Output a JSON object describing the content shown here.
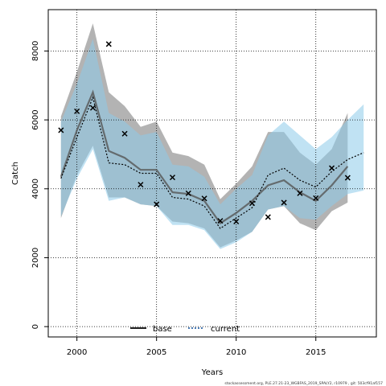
{
  "chart_data": {
    "type": "line",
    "xlabel": "Years",
    "ylabel": "Catch",
    "xlim": [
      1998.2,
      2018.8
    ],
    "ylim": [
      -300,
      9200
    ],
    "x_ticks": [
      2000,
      2005,
      2010,
      2015
    ],
    "y_ticks": [
      0,
      2000,
      4000,
      6000,
      8000
    ],
    "grid": "dotted",
    "legend_position": "bottom-center",
    "footnote": "stockassessment.org, PLE.27.21-23_WGBFAS_2019_SPALY2, r10979 , git: 503cf91af157",
    "observations": {
      "marker": "x",
      "x": [
        1999,
        2000,
        2001,
        2002,
        2003,
        2004,
        2005,
        2006,
        2007,
        2008,
        2009,
        2010,
        2011,
        2012,
        2013,
        2014,
        2015,
        2016,
        2017
      ],
      "y": [
        5700,
        6250,
        6350,
        8200,
        5600,
        4120,
        3550,
        4330,
        3870,
        3720,
        3070,
        3050,
        3580,
        3180,
        3600,
        3870,
        3730,
        4600,
        4320
      ]
    },
    "series": [
      {
        "name": "base",
        "color": "#000000",
        "line_style": "solid",
        "band_color": "#999999",
        "x": [
          1999,
          2000,
          2001,
          2002,
          2003,
          2004,
          2005,
          2006,
          2007,
          2008,
          2009,
          2010,
          2011,
          2012,
          2013,
          2014,
          2015,
          2016,
          2017
        ],
        "y": [
          4350,
          5700,
          6800,
          5100,
          4900,
          4550,
          4550,
          3900,
          3850,
          3650,
          3000,
          3300,
          3650,
          4100,
          4250,
          3900,
          3650,
          4100,
          4650
        ],
        "lower": [
          3150,
          4400,
          5250,
          3750,
          3750,
          3550,
          3500,
          3050,
          3000,
          2850,
          2300,
          2500,
          2750,
          3400,
          3500,
          3000,
          2800,
          3350,
          3600
        ],
        "upper": [
          6100,
          7400,
          8800,
          6800,
          6400,
          5800,
          5950,
          5050,
          4950,
          4700,
          3700,
          4150,
          4650,
          5650,
          5650,
          5050,
          4700,
          5150,
          6200
        ]
      },
      {
        "name": "current",
        "color": "#0b4f9c",
        "line_style": "dotted",
        "band_color": "#8ccbea",
        "x": [
          1999,
          2000,
          2001,
          2002,
          2003,
          2004,
          2005,
          2006,
          2007,
          2008,
          2009,
          2010,
          2011,
          2012,
          2013,
          2014,
          2015,
          2016,
          2017,
          2018
        ],
        "y": [
          4300,
          5500,
          6650,
          4750,
          4700,
          4450,
          4450,
          3750,
          3700,
          3500,
          2850,
          3150,
          3450,
          4400,
          4600,
          4250,
          4050,
          4500,
          4850,
          5050
        ],
        "lower": [
          3200,
          4300,
          5150,
          3650,
          3750,
          3550,
          3500,
          2950,
          2950,
          2800,
          2250,
          2450,
          2750,
          3400,
          3500,
          3150,
          3100,
          3500,
          3850,
          3950
        ],
        "upper": [
          5950,
          7050,
          8350,
          6200,
          5950,
          5550,
          5650,
          4700,
          4650,
          4350,
          3550,
          4000,
          4400,
          5550,
          5950,
          5550,
          5150,
          5500,
          6000,
          6450
        ]
      }
    ]
  }
}
